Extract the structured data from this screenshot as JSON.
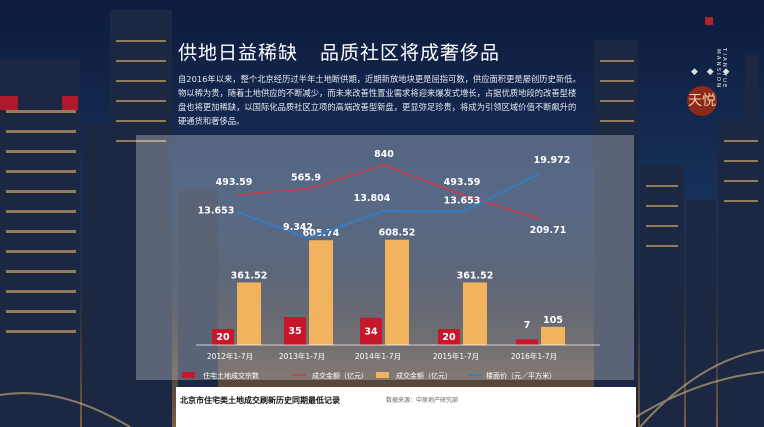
{
  "headline": {
    "part1": "供地日益稀缺",
    "part2": "品质社区将成奢侈品"
  },
  "body_text": "自2016年以来，整个北京经历过半年土地断供期，近期新放地块更是屈指可数，供应面积更是屡创历史新低。物以稀为贵，随着土地供应的不断减少，而未来改善性置业需求将迎来爆发式增长，占据优质地段的改善型楼盘也将更加稀缺，以国际化品质社区立项的高端改善型新盘，更显弥足珍贵，将成为引领区域价值不断飙升的硬通货和奢侈品。",
  "brand": {
    "en": "TIAN YUE MANSION",
    "logo_text": "天悦",
    "dots": "◆ ◆ ◆"
  },
  "colors": {
    "deal_count_bar": "#c8172a",
    "deal_amount_bar": "#f2b35e",
    "deal_amount_line": "#d03a4c",
    "floor_price_line": "#2f7ecb"
  },
  "chart_data": {
    "type": "bar",
    "categories": [
      "2012年1-7月",
      "2013年1-7月",
      "2014年1-7月",
      "2015年1-7月",
      "2016年1-7月"
    ],
    "series": [
      {
        "name": "住宅土地成交宗数",
        "kind": "bar",
        "values": [
          20,
          35,
          34,
          20,
          7
        ],
        "labels": [
          "20",
          "35",
          "34",
          "20",
          "7"
        ]
      },
      {
        "name": "成交金额（亿元）",
        "kind": "bar",
        "values": [
          361.52,
          605.74,
          608.52,
          361.52,
          105
        ],
        "labels": [
          "361.52",
          "605.74",
          "608.52",
          "361.52",
          "105"
        ]
      },
      {
        "name": "成交金额（亿元）",
        "kind": "line",
        "values": [
          493.59,
          565.9,
          840,
          493.59,
          209.71
        ],
        "labels": [
          "493.59",
          "565.9",
          "840",
          "493.59",
          "209.71"
        ]
      },
      {
        "name": "楼面价（元／平方米）",
        "kind": "line",
        "values": [
          13653,
          9342,
          13804,
          13653,
          19972
        ],
        "labels": [
          "13.653",
          "9.342",
          "13.804",
          "13.653",
          "19.972"
        ]
      }
    ],
    "legend": [
      "住宅土地成交宗数",
      "成交金额（亿元）",
      "成交金额（亿元）",
      "楼面价（元／平方米）"
    ],
    "footer_title": "北京市住宅类土地成交刷新历史同期最低记录",
    "source": "数据来源：中原地产研究部"
  }
}
